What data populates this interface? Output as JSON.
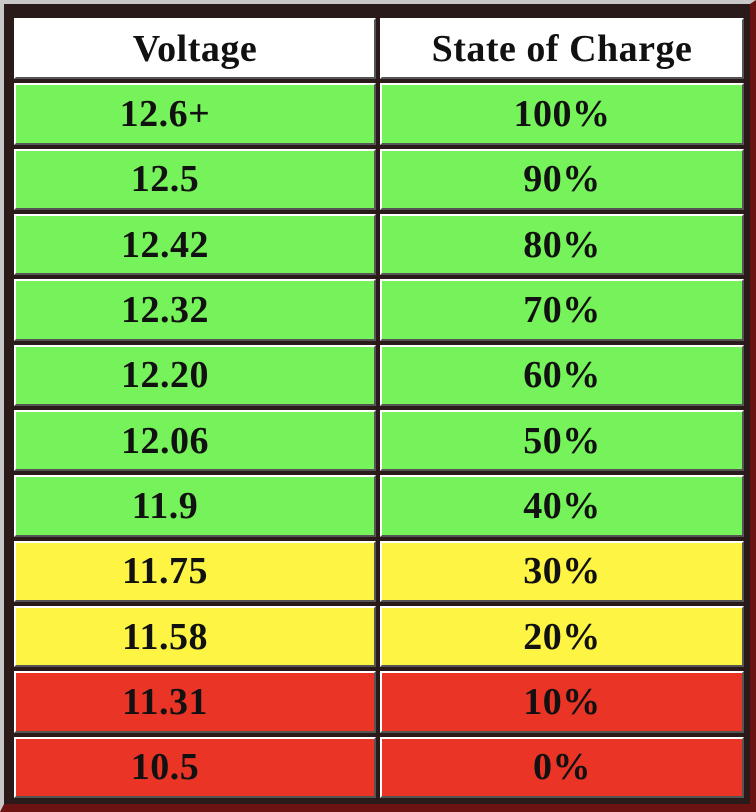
{
  "table": {
    "headers": {
      "voltage": "Voltage",
      "soc": "State of Charge"
    },
    "colors": {
      "green": "#76f35a",
      "yellow": "#fdf444",
      "red": "#ea3426"
    },
    "rows": [
      {
        "voltage": "12.6+",
        "soc": "100%",
        "status": "green"
      },
      {
        "voltage": "12.5",
        "soc": "90%",
        "status": "green"
      },
      {
        "voltage": "12.42",
        "soc": "80%",
        "status": "green"
      },
      {
        "voltage": "12.32",
        "soc": "70%",
        "status": "green"
      },
      {
        "voltage": "12.20",
        "soc": "60%",
        "status": "green"
      },
      {
        "voltage": "12.06",
        "soc": "50%",
        "status": "green"
      },
      {
        "voltage": "11.9",
        "soc": "40%",
        "status": "green"
      },
      {
        "voltage": "11.75",
        "soc": "30%",
        "status": "yellow"
      },
      {
        "voltage": "11.58",
        "soc": "20%",
        "status": "yellow"
      },
      {
        "voltage": "11.31",
        "soc": "10%",
        "status": "red"
      },
      {
        "voltage": "10.5",
        "soc": "0%",
        "status": "red"
      }
    ]
  }
}
